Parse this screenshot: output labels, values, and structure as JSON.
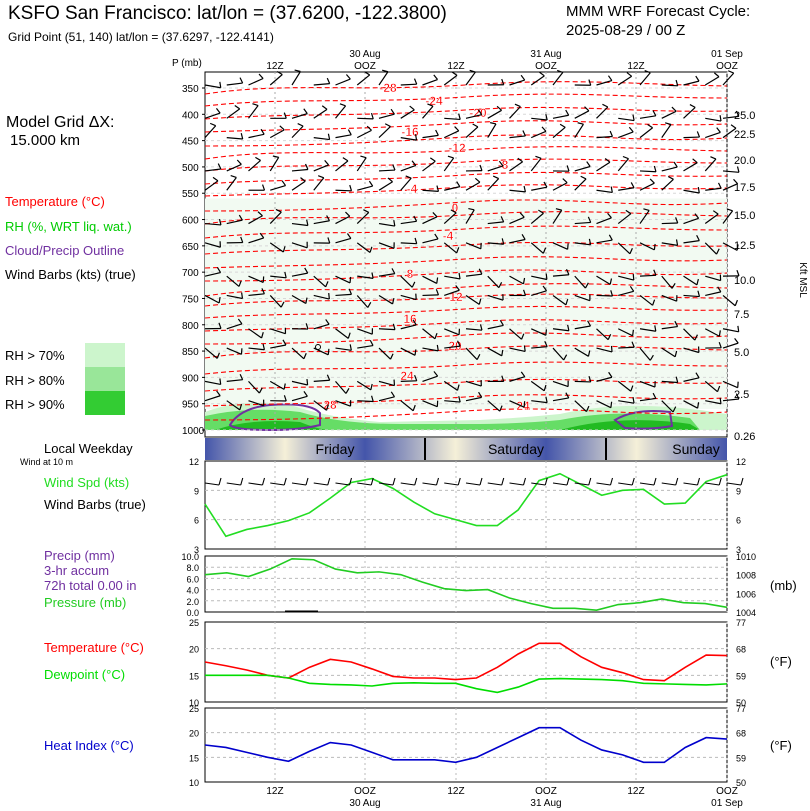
{
  "header": {
    "title": "KSFO San Francisco:  lat/lon = (37.6200, -122.3800)",
    "grid_point": "Grid Point (51, 140) lat/lon = (37.6297, -122.4141)",
    "cycle_line1": "MMM WRF Forecast Cycle:",
    "cycle_line2": "2025-08-29 / 00  Z",
    "model_grid_label": "Model Grid ΔX:",
    "model_grid_value": "15.000 km"
  },
  "legend": {
    "temperature": "Temperature (°C)",
    "rh": "RH (%, WRT liq. wat.)",
    "cloud": "Cloud/Precip Outline",
    "wind": "Wind Barbs (kts) (true)",
    "rh70": "RH > 70%",
    "rh80": "RH > 80%",
    "rh90": "RH > 90%"
  },
  "colors": {
    "temperature": "#ff0000",
    "rh_green": "#00cc00",
    "cloud": "#7030a0",
    "dewpoint": "#00dd00",
    "heat_index": "#0000cc",
    "wind_speed": "#22dd22",
    "pressure": "#22cc22"
  },
  "time_axis": {
    "top_labels": [
      "12Z",
      "OOZ",
      "12Z",
      "OOZ",
      "12Z",
      "OOZ"
    ],
    "top_dates": [
      "30 Aug",
      "31 Aug",
      "01 Sep"
    ],
    "bottom_labels": [
      "12Z",
      "OOZ",
      "12Z",
      "OOZ",
      "12Z",
      "OOZ"
    ],
    "bottom_dates": [
      "30 Aug",
      "31 Aug",
      "01 Sep"
    ],
    "days": [
      "Friday",
      "Saturday",
      "Sunday"
    ],
    "local_weekday_label": "Local Weekday",
    "wind_at_10m_label": "Wind at 10 m"
  },
  "chart_data": [
    {
      "type": "line",
      "name": "cross-section",
      "y_axis_title": "P (mb)",
      "pressure_levels": [
        350,
        400,
        450,
        500,
        550,
        600,
        650,
        700,
        750,
        800,
        850,
        900,
        950,
        1000
      ],
      "right_axis_labels": [
        "25.0",
        "22.5",
        "20.0",
        "17.5",
        "15.0",
        "12.5",
        "10.0",
        "7.5",
        "5.0",
        "2.5",
        "0.26"
      ],
      "right_axis_title": "Kft MSL",
      "temperature_labels": [
        "-28",
        "-24",
        "-20",
        "-16",
        "-12",
        "-8",
        "-4",
        "0",
        "-4",
        "8",
        "12",
        "16",
        "20",
        "24",
        "28",
        "24"
      ]
    },
    {
      "type": "line",
      "name": "wind",
      "left_label": "Wind Spd (kts)",
      "left_label2": "Wind Barbs (true)",
      "yticks": [
        "12",
        "9",
        "6",
        "3"
      ],
      "ylim": [
        3,
        12
      ],
      "series": [
        {
          "name": "Wind Spd (kts)",
          "values": [
            7.6,
            4.3,
            5.0,
            5.4,
            5.9,
            6.7,
            8.2,
            9.8,
            10.2,
            9.2,
            7.8,
            6.6,
            6.0,
            5.4,
            5.4,
            7.0,
            10.0,
            10.7,
            9.6,
            8.5,
            9.0,
            9.1,
            7.6,
            7.7,
            9.9,
            10.6
          ]
        }
      ]
    },
    {
      "type": "line",
      "name": "precip-pressure",
      "left_label1": "Precip (mm)",
      "left_label2": "3-hr accum",
      "left_label3": "72h total 0.00 in",
      "left_label4": "Pressure (mb)",
      "left_ticks": [
        "10.0",
        "8.0",
        "6.0",
        "4.0",
        "2.0",
        "0.0"
      ],
      "right_ticks": [
        "1010",
        "1008",
        "1006",
        "1004"
      ],
      "right_unit": "(mb)",
      "series": [
        {
          "name": "Pressure (mb)",
          "values": [
            1008.0,
            1008.2,
            1007.8,
            1008.6,
            1009.7,
            1009.6,
            1008.6,
            1008.2,
            1008.3,
            1008.0,
            1007.2,
            1006.5,
            1006.3,
            1006.4,
            1005.5,
            1004.9,
            1004.4,
            1004.4,
            1004.2,
            1004.8,
            1005.0,
            1005.4,
            1005.0,
            1004.9,
            1004.5
          ]
        }
      ]
    },
    {
      "type": "line",
      "name": "temp-dewpoint",
      "left_label1": "Temperature (°C)",
      "left_label2": "Dewpoint (°C)",
      "left_ticks": [
        "25",
        "20",
        "15",
        "10"
      ],
      "right_ticks": [
        "77",
        "68",
        "59",
        "50"
      ],
      "right_unit": "(°F)",
      "ylim": [
        10,
        25
      ],
      "series": [
        {
          "name": "Temperature (°C)",
          "values": [
            17.5,
            16.8,
            16.0,
            15.0,
            14.5,
            16.5,
            18.0,
            17.5,
            16.2,
            14.8,
            14.5,
            14.5,
            14.2,
            14.5,
            16.5,
            19.0,
            21.0,
            21.0,
            18.5,
            16.5,
            15.5,
            14.2,
            14.0,
            16.5,
            18.8,
            18.7
          ]
        },
        {
          "name": "Dewpoint (°C)",
          "values": [
            15.0,
            15.0,
            15.0,
            15.0,
            14.5,
            13.5,
            13.3,
            13.2,
            13.0,
            13.5,
            13.6,
            13.5,
            13.5,
            12.5,
            11.8,
            12.8,
            14.3,
            14.4,
            14.3,
            14.2,
            14.0,
            13.5,
            13.4,
            13.3,
            13.2,
            13.4
          ]
        }
      ]
    },
    {
      "type": "line",
      "name": "heat-index",
      "left_label": "Heat Index (°C)",
      "left_ticks": [
        "25",
        "20",
        "15",
        "10"
      ],
      "right_ticks": [
        "77",
        "68",
        "59",
        "50"
      ],
      "right_unit": "(°F)",
      "ylim": [
        10,
        25
      ],
      "series": [
        {
          "name": "Heat Index (°C)",
          "values": [
            17.5,
            17.0,
            16.0,
            15.0,
            14.2,
            16.2,
            18.0,
            17.5,
            16.0,
            14.5,
            14.5,
            14.5,
            14.0,
            15.0,
            17.0,
            19.0,
            21.0,
            21.0,
            18.5,
            16.5,
            15.5,
            14.0,
            14.0,
            17.0,
            19.0,
            18.7
          ]
        }
      ]
    }
  ]
}
